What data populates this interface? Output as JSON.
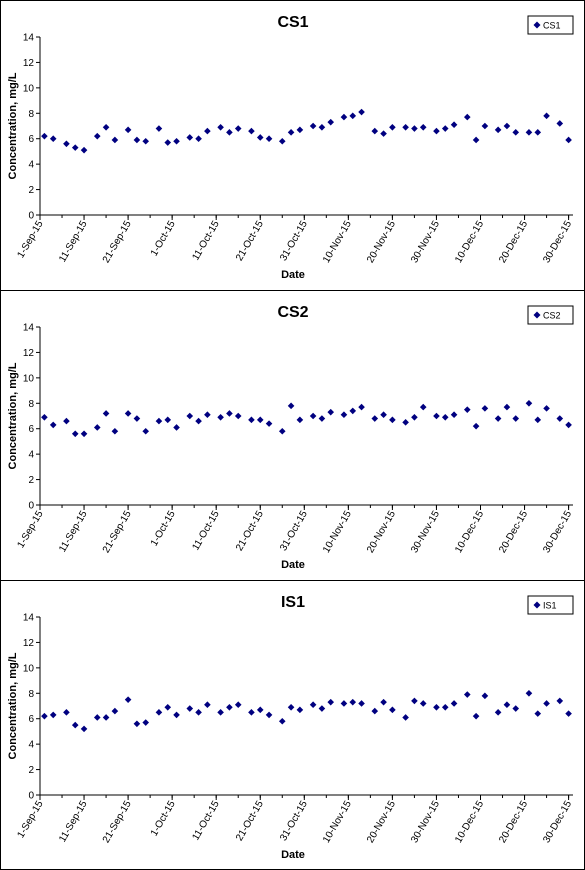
{
  "colors": {
    "marker": "#000080",
    "axis": "#000000"
  },
  "chart_data": [
    {
      "type": "scatter",
      "title": "CS1",
      "xlabel": "Date",
      "ylabel": "Concentration, mg/L",
      "ylim": [
        0,
        14
      ],
      "yticks": [
        0,
        2,
        4,
        6,
        8,
        10,
        12,
        14
      ],
      "xlim": [
        "2015-09-01",
        "2015-12-31"
      ],
      "xticks": [
        "2015-09-01",
        "2015-09-11",
        "2015-09-21",
        "2015-10-01",
        "2015-10-11",
        "2015-10-21",
        "2015-10-31",
        "2015-11-10",
        "2015-11-20",
        "2015-11-30",
        "2015-12-10",
        "2015-12-20",
        "2015-12-30"
      ],
      "xtick_labels": [
        "1-Sep-15",
        "11-Sep-15",
        "21-Sep-15",
        "1-Oct-15",
        "11-Oct-15",
        "21-Oct-15",
        "31-Oct-15",
        "10-Nov-15",
        "20-Nov-15",
        "30-Nov-15",
        "10-Dec-15",
        "20-Dec-15",
        "30-Dec-15"
      ],
      "legend": {
        "position": "top-right",
        "entries": [
          "CS1"
        ]
      },
      "series": [
        {
          "name": "CS1",
          "points": [
            [
              "2015-09-02",
              6.2
            ],
            [
              "2015-09-04",
              6.0
            ],
            [
              "2015-09-07",
              5.6
            ],
            [
              "2015-09-09",
              5.3
            ],
            [
              "2015-09-11",
              5.1
            ],
            [
              "2015-09-14",
              6.2
            ],
            [
              "2015-09-16",
              6.9
            ],
            [
              "2015-09-18",
              5.9
            ],
            [
              "2015-09-21",
              6.7
            ],
            [
              "2015-09-23",
              5.9
            ],
            [
              "2015-09-25",
              5.8
            ],
            [
              "2015-09-28",
              6.8
            ],
            [
              "2015-09-30",
              5.7
            ],
            [
              "2015-10-02",
              5.8
            ],
            [
              "2015-10-05",
              6.1
            ],
            [
              "2015-10-07",
              6.0
            ],
            [
              "2015-10-09",
              6.6
            ],
            [
              "2015-10-12",
              6.9
            ],
            [
              "2015-10-14",
              6.5
            ],
            [
              "2015-10-16",
              6.8
            ],
            [
              "2015-10-19",
              6.6
            ],
            [
              "2015-10-21",
              6.1
            ],
            [
              "2015-10-23",
              6.0
            ],
            [
              "2015-10-26",
              5.8
            ],
            [
              "2015-10-28",
              6.5
            ],
            [
              "2015-10-30",
              6.7
            ],
            [
              "2015-11-02",
              7.0
            ],
            [
              "2015-11-04",
              6.9
            ],
            [
              "2015-11-06",
              7.3
            ],
            [
              "2015-11-09",
              7.7
            ],
            [
              "2015-11-11",
              7.8
            ],
            [
              "2015-11-13",
              8.1
            ],
            [
              "2015-11-16",
              6.6
            ],
            [
              "2015-11-18",
              6.4
            ],
            [
              "2015-11-20",
              6.9
            ],
            [
              "2015-11-23",
              6.9
            ],
            [
              "2015-11-25",
              6.8
            ],
            [
              "2015-11-27",
              6.9
            ],
            [
              "2015-11-30",
              6.6
            ],
            [
              "2015-12-02",
              6.8
            ],
            [
              "2015-12-04",
              7.1
            ],
            [
              "2015-12-07",
              7.7
            ],
            [
              "2015-12-09",
              5.9
            ],
            [
              "2015-12-11",
              7.0
            ],
            [
              "2015-12-14",
              6.7
            ],
            [
              "2015-12-16",
              7.0
            ],
            [
              "2015-12-18",
              6.5
            ],
            [
              "2015-12-21",
              6.5
            ],
            [
              "2015-12-23",
              6.5
            ],
            [
              "2015-12-25",
              7.8
            ],
            [
              "2015-12-28",
              7.2
            ],
            [
              "2015-12-30",
              5.9
            ]
          ]
        }
      ]
    },
    {
      "type": "scatter",
      "title": "CS2",
      "xlabel": "Date",
      "ylabel": "Concentration, mg/L",
      "ylim": [
        0,
        14
      ],
      "yticks": [
        0,
        2,
        4,
        6,
        8,
        10,
        12,
        14
      ],
      "xlim": [
        "2015-09-01",
        "2015-12-31"
      ],
      "xticks": [
        "2015-09-01",
        "2015-09-11",
        "2015-09-21",
        "2015-10-01",
        "2015-10-11",
        "2015-10-21",
        "2015-10-31",
        "2015-11-10",
        "2015-11-20",
        "2015-11-30",
        "2015-12-10",
        "2015-12-20",
        "2015-12-30"
      ],
      "xtick_labels": [
        "1-Sep-15",
        "11-Sep-15",
        "21-Sep-15",
        "1-Oct-15",
        "11-Oct-15",
        "21-Oct-15",
        "31-Oct-15",
        "10-Nov-15",
        "20-Nov-15",
        "30-Nov-15",
        "10-Dec-15",
        "20-Dec-15",
        "30-Dec-15"
      ],
      "legend": {
        "position": "top-right",
        "entries": [
          "CS2"
        ]
      },
      "series": [
        {
          "name": "CS2",
          "points": [
            [
              "2015-09-02",
              6.9
            ],
            [
              "2015-09-04",
              6.3
            ],
            [
              "2015-09-07",
              6.6
            ],
            [
              "2015-09-09",
              5.6
            ],
            [
              "2015-09-11",
              5.6
            ],
            [
              "2015-09-14",
              6.1
            ],
            [
              "2015-09-16",
              7.2
            ],
            [
              "2015-09-18",
              5.8
            ],
            [
              "2015-09-21",
              7.2
            ],
            [
              "2015-09-23",
              6.8
            ],
            [
              "2015-09-25",
              5.8
            ],
            [
              "2015-09-28",
              6.6
            ],
            [
              "2015-09-30",
              6.7
            ],
            [
              "2015-10-02",
              6.1
            ],
            [
              "2015-10-05",
              7.0
            ],
            [
              "2015-10-07",
              6.6
            ],
            [
              "2015-10-09",
              7.1
            ],
            [
              "2015-10-12",
              6.9
            ],
            [
              "2015-10-14",
              7.2
            ],
            [
              "2015-10-16",
              7.0
            ],
            [
              "2015-10-19",
              6.7
            ],
            [
              "2015-10-21",
              6.7
            ],
            [
              "2015-10-23",
              6.4
            ],
            [
              "2015-10-26",
              5.8
            ],
            [
              "2015-10-28",
              7.8
            ],
            [
              "2015-10-30",
              6.7
            ],
            [
              "2015-11-02",
              7.0
            ],
            [
              "2015-11-04",
              6.8
            ],
            [
              "2015-11-06",
              7.3
            ],
            [
              "2015-11-09",
              7.1
            ],
            [
              "2015-11-11",
              7.4
            ],
            [
              "2015-11-13",
              7.7
            ],
            [
              "2015-11-16",
              6.8
            ],
            [
              "2015-11-18",
              7.1
            ],
            [
              "2015-11-20",
              6.7
            ],
            [
              "2015-11-23",
              6.5
            ],
            [
              "2015-11-25",
              6.9
            ],
            [
              "2015-11-27",
              7.7
            ],
            [
              "2015-11-30",
              7.0
            ],
            [
              "2015-12-02",
              6.9
            ],
            [
              "2015-12-04",
              7.1
            ],
            [
              "2015-12-07",
              7.5
            ],
            [
              "2015-12-09",
              6.2
            ],
            [
              "2015-12-11",
              7.6
            ],
            [
              "2015-12-14",
              6.8
            ],
            [
              "2015-12-16",
              7.7
            ],
            [
              "2015-12-18",
              6.8
            ],
            [
              "2015-12-21",
              8.0
            ],
            [
              "2015-12-23",
              6.7
            ],
            [
              "2015-12-25",
              7.6
            ],
            [
              "2015-12-28",
              6.8
            ],
            [
              "2015-12-30",
              6.3
            ]
          ]
        }
      ]
    },
    {
      "type": "scatter",
      "title": "IS1",
      "xlabel": "Date",
      "ylabel": "Concentration, mg/L",
      "ylim": [
        0,
        14
      ],
      "yticks": [
        0,
        2,
        4,
        6,
        8,
        10,
        12,
        14
      ],
      "xlim": [
        "2015-09-01",
        "2015-12-31"
      ],
      "xticks": [
        "2015-09-01",
        "2015-09-11",
        "2015-09-21",
        "2015-10-01",
        "2015-10-11",
        "2015-10-21",
        "2015-10-31",
        "2015-11-10",
        "2015-11-20",
        "2015-11-30",
        "2015-12-10",
        "2015-12-20",
        "2015-12-30"
      ],
      "xtick_labels": [
        "1-Sep-15",
        "11-Sep-15",
        "21-Sep-15",
        "1-Oct-15",
        "11-Oct-15",
        "21-Oct-15",
        "31-Oct-15",
        "10-Nov-15",
        "20-Nov-15",
        "30-Nov-15",
        "10-Dec-15",
        "20-Dec-15",
        "30-Dec-15"
      ],
      "legend": {
        "position": "top-right",
        "entries": [
          "IS1"
        ]
      },
      "series": [
        {
          "name": "IS1",
          "points": [
            [
              "2015-09-02",
              6.2
            ],
            [
              "2015-09-04",
              6.3
            ],
            [
              "2015-09-07",
              6.5
            ],
            [
              "2015-09-09",
              5.5
            ],
            [
              "2015-09-11",
              5.2
            ],
            [
              "2015-09-14",
              6.1
            ],
            [
              "2015-09-16",
              6.1
            ],
            [
              "2015-09-18",
              6.6
            ],
            [
              "2015-09-21",
              7.5
            ],
            [
              "2015-09-23",
              5.6
            ],
            [
              "2015-09-25",
              5.7
            ],
            [
              "2015-09-28",
              6.5
            ],
            [
              "2015-09-30",
              6.9
            ],
            [
              "2015-10-02",
              6.3
            ],
            [
              "2015-10-05",
              6.8
            ],
            [
              "2015-10-07",
              6.5
            ],
            [
              "2015-10-09",
              7.1
            ],
            [
              "2015-10-12",
              6.5
            ],
            [
              "2015-10-14",
              6.9
            ],
            [
              "2015-10-16",
              7.1
            ],
            [
              "2015-10-19",
              6.5
            ],
            [
              "2015-10-21",
              6.7
            ],
            [
              "2015-10-23",
              6.3
            ],
            [
              "2015-10-26",
              5.8
            ],
            [
              "2015-10-28",
              6.9
            ],
            [
              "2015-10-30",
              6.7
            ],
            [
              "2015-11-02",
              7.1
            ],
            [
              "2015-11-04",
              6.8
            ],
            [
              "2015-11-06",
              7.3
            ],
            [
              "2015-11-09",
              7.2
            ],
            [
              "2015-11-11",
              7.3
            ],
            [
              "2015-11-13",
              7.2
            ],
            [
              "2015-11-16",
              6.6
            ],
            [
              "2015-11-18",
              7.3
            ],
            [
              "2015-11-20",
              6.7
            ],
            [
              "2015-11-23",
              6.1
            ],
            [
              "2015-11-25",
              7.4
            ],
            [
              "2015-11-27",
              7.2
            ],
            [
              "2015-11-30",
              6.9
            ],
            [
              "2015-12-02",
              6.9
            ],
            [
              "2015-12-04",
              7.2
            ],
            [
              "2015-12-07",
              7.9
            ],
            [
              "2015-12-09",
              6.2
            ],
            [
              "2015-12-11",
              7.8
            ],
            [
              "2015-12-14",
              6.5
            ],
            [
              "2015-12-16",
              7.1
            ],
            [
              "2015-12-18",
              6.8
            ],
            [
              "2015-12-21",
              8.0
            ],
            [
              "2015-12-23",
              6.4
            ],
            [
              "2015-12-25",
              7.2
            ],
            [
              "2015-12-28",
              7.4
            ],
            [
              "2015-12-30",
              6.4
            ]
          ]
        }
      ]
    }
  ]
}
